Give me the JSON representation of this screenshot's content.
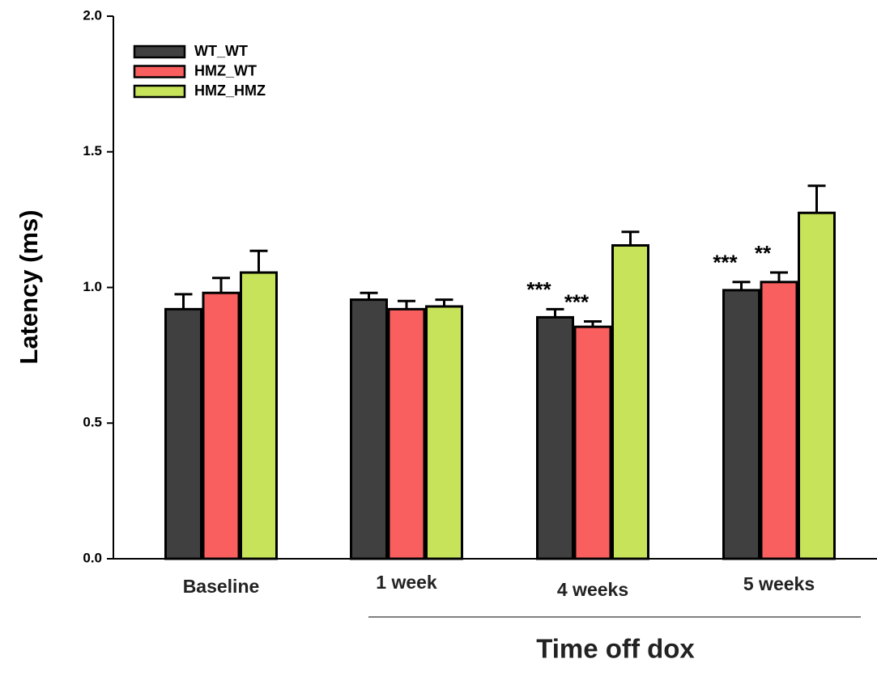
{
  "chart_data": {
    "type": "bar",
    "x_label": "Time off dox",
    "y_label": "Latency (ms)",
    "categories": [
      "Baseline",
      "1 week",
      "4 weeks",
      "5 weeks"
    ],
    "series": [
      {
        "name": "WT_WT",
        "color": "#404040",
        "values": [
          0.92,
          0.955,
          0.89,
          0.99
        ],
        "errors": [
          0.055,
          0.025,
          0.03,
          0.03
        ],
        "annotations": [
          null,
          null,
          "***",
          "***"
        ]
      },
      {
        "name": "HMZ_WT",
        "color": "#fa5f5f",
        "values": [
          0.98,
          0.92,
          0.855,
          1.02
        ],
        "errors": [
          0.055,
          0.03,
          0.02,
          0.035
        ],
        "annotations": [
          null,
          null,
          "***",
          "**"
        ]
      },
      {
        "name": "HMZ_HMZ",
        "color": "#c6e35a",
        "values": [
          1.055,
          0.93,
          1.155,
          1.275
        ],
        "errors": [
          0.08,
          0.025,
          0.05,
          0.1
        ],
        "annotations": [
          null,
          null,
          null,
          null
        ]
      }
    ],
    "ylim": [
      0,
      2
    ],
    "yticks": [
      {
        "value": 0,
        "label": "0.0"
      },
      {
        "value": 0.5,
        "label": "0.5"
      },
      {
        "value": 1,
        "label": "1.0"
      },
      {
        "value": 1.5,
        "label": "1.5"
      },
      {
        "value": 2,
        "label": "2.0"
      }
    ],
    "legend": "upper left"
  }
}
